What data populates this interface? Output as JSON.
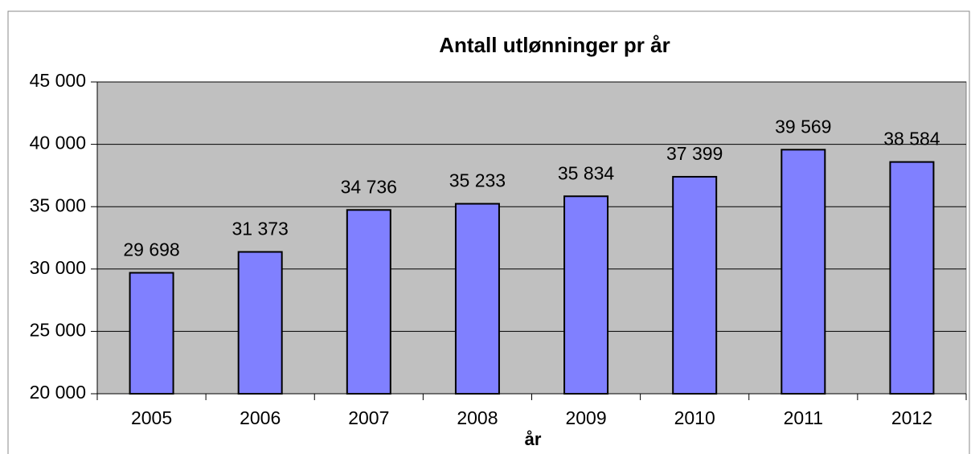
{
  "chart_data": {
    "type": "bar",
    "title": "Antall utlønninger pr år",
    "x_label": "år",
    "categories": [
      "2005",
      "2006",
      "2007",
      "2008",
      "2009",
      "2010",
      "2011",
      "2012"
    ],
    "values": [
      29698,
      31373,
      34736,
      35233,
      35834,
      37399,
      39569,
      38584
    ],
    "value_labels": [
      "29 698",
      "31 373",
      "34 736",
      "35 233",
      "35 834",
      "37 399",
      "39 569",
      "38 584"
    ],
    "color": "#8080ff",
    "ylim": [
      20000,
      45000
    ],
    "yticks": [
      {
        "value": 20000,
        "label": "20 000"
      },
      {
        "value": 25000,
        "label": "25 000"
      },
      {
        "value": 30000,
        "label": "30 000"
      },
      {
        "value": 35000,
        "label": "35 000"
      },
      {
        "value": 40000,
        "label": "40 000"
      },
      {
        "value": 45000,
        "label": "45 000"
      }
    ],
    "grid": true
  }
}
